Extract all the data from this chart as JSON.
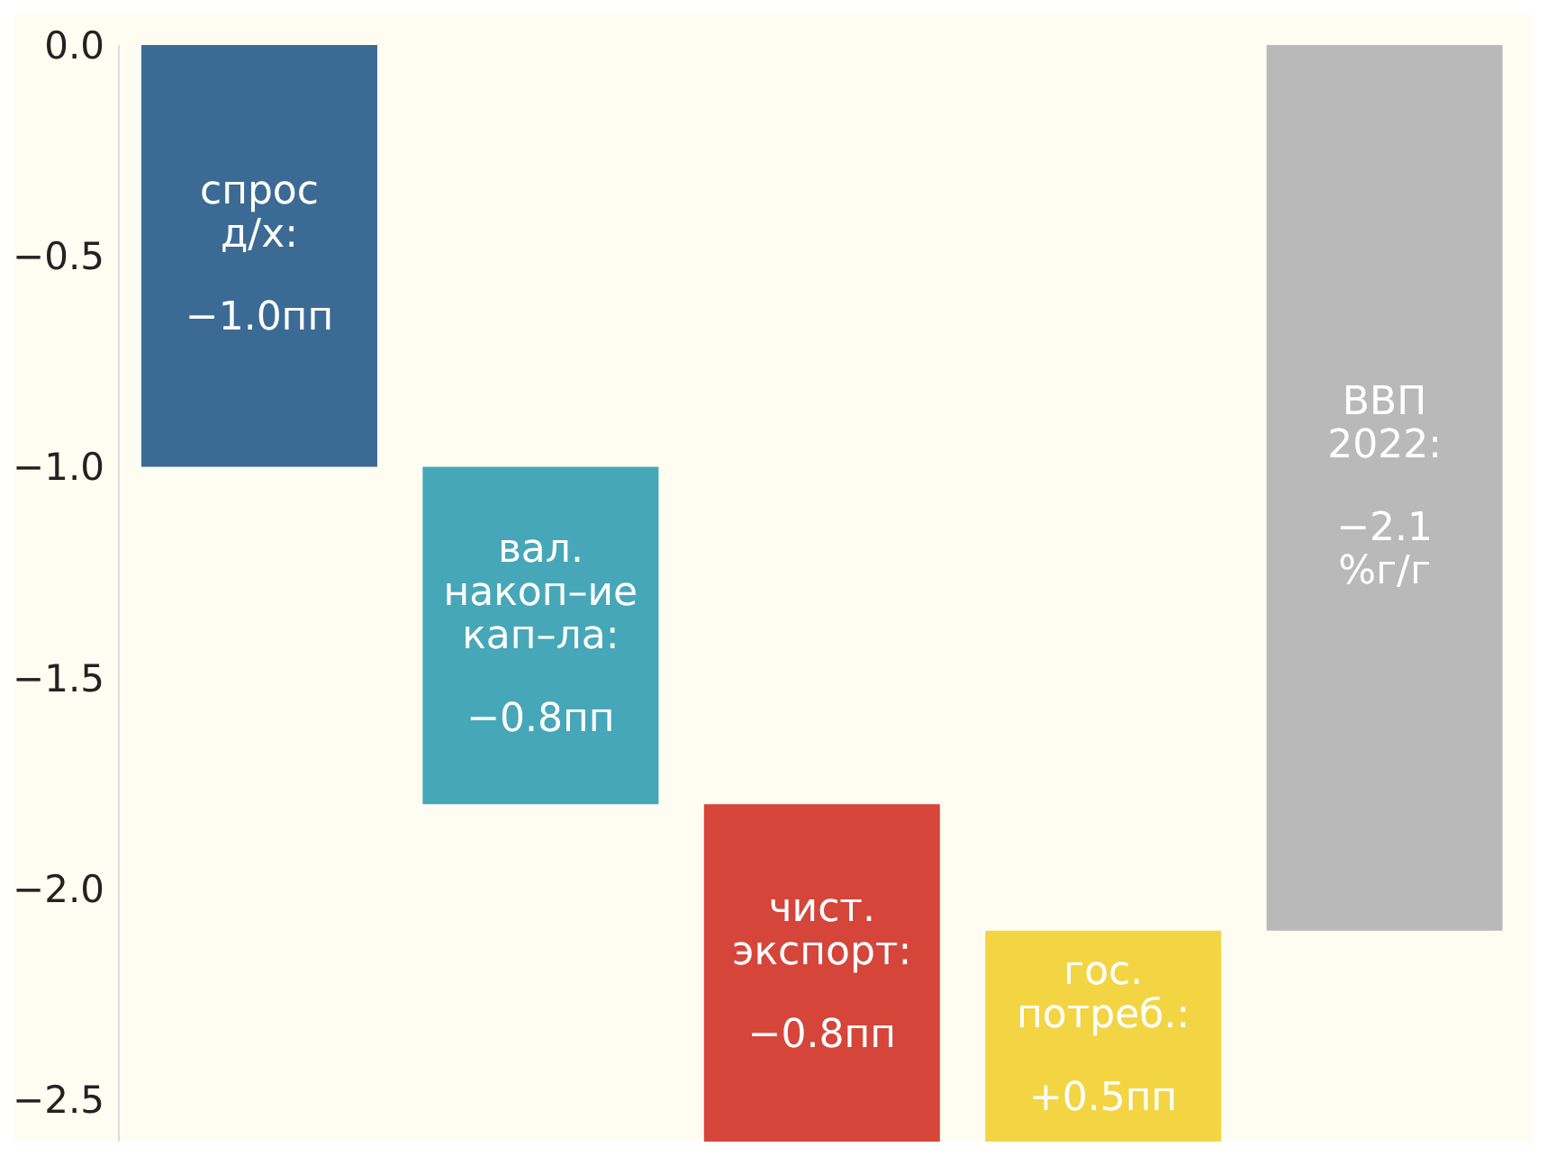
{
  "chart_data": {
    "type": "bar",
    "categories": [
      null,
      null,
      null,
      null,
      null
    ],
    "base": [
      0,
      -1.0,
      -1.8,
      -2.6,
      0
    ],
    "values": [
      -1.0,
      -0.8,
      -0.8,
      0.5,
      -2.1
    ],
    "value_labels": [
      "спрос д/х: −1.0пп",
      "вал. накоп–ие кап–ла: −0.8пп",
      "чист. экспорт: −0.8пп",
      "гос. потреб.: +0.5пп",
      "ВВП 2022: −2.1 %г/г"
    ],
    "colors": [
      "#3b6b94",
      "#46a7b9",
      "#d5453a",
      "#f3d544",
      "#b9b9b9"
    ],
    "ylim": [
      -2.6,
      0
    ],
    "yticks": [
      {
        "value": 0,
        "label": "0.0"
      },
      {
        "value": -0.5,
        "label": "−0.5"
      },
      {
        "value": -1.0,
        "label": "−1.0"
      },
      {
        "value": -1.5,
        "label": "−1.5"
      },
      {
        "value": -2.0,
        "label": "−2.0"
      },
      {
        "value": -2.5,
        "label": "−2.5"
      }
    ]
  }
}
